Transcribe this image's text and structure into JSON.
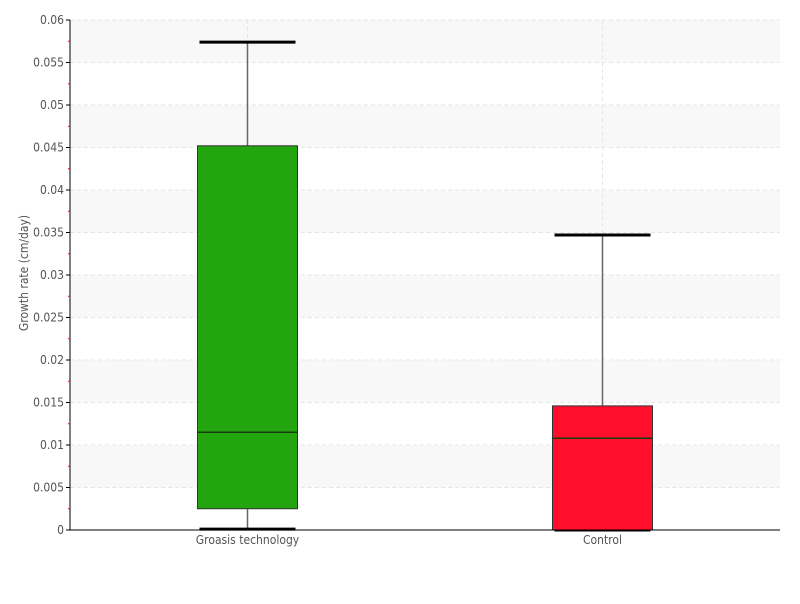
{
  "chart_data": {
    "type": "box",
    "title": "",
    "xlabel": "",
    "ylabel": "Growth rate (cm/day)",
    "ylim": [
      0,
      0.06
    ],
    "yticks": [
      "0",
      "0.005",
      "0.01",
      "0.015",
      "0.02",
      "0.025",
      "0.03",
      "0.035",
      "0.04",
      "0.045",
      "0.05",
      "0.055",
      "0.06"
    ],
    "grid": true,
    "categories": [
      "Groasis technology",
      "Control"
    ],
    "boxes": [
      {
        "min": 0.0001,
        "q1": 0.0025,
        "median": 0.0115,
        "q3": 0.0452,
        "max": 0.0574,
        "color": "#22a50e"
      },
      {
        "min": 0.0,
        "q1": 0.0,
        "median": 0.0108,
        "q3": 0.0146,
        "max": 0.0347,
        "color": "#ff0f2b"
      }
    ]
  }
}
